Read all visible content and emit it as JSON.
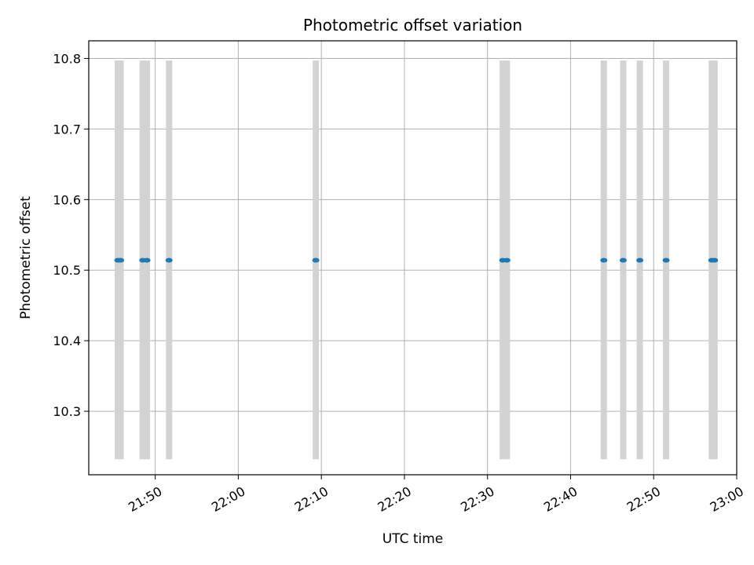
{
  "chart_data": {
    "type": "scatter",
    "title": "Photometric offset variation",
    "xlabel": "UTC time",
    "ylabel": "Photometric offset",
    "x_axis_type": "time",
    "xlim": [
      "21:42",
      "23:00"
    ],
    "ylim": [
      10.21,
      10.825
    ],
    "x_ticks": [
      "21:50",
      "22:00",
      "22:10",
      "22:20",
      "22:30",
      "22:40",
      "22:50",
      "23:00"
    ],
    "y_ticks": [
      10.3,
      10.4,
      10.5,
      10.6,
      10.7,
      10.8
    ],
    "grid": true,
    "colors": {
      "points": "#1f77b4",
      "error_bars": "#d3d3d3",
      "grid": "#b0b0b0"
    },
    "error_bar": {
      "low": 10.232,
      "high": 10.797
    },
    "series": [
      {
        "x": [
          "21:45:30",
          "21:45:50",
          "21:48:30",
          "21:49:00",
          "21:51:40",
          "22:09:20",
          "22:31:50",
          "22:32:20",
          "22:44:00",
          "22:46:20",
          "22:48:20",
          "22:51:30",
          "22:57:00",
          "22:57:20"
        ],
        "y": [
          10.514,
          10.514,
          10.514,
          10.514,
          10.514,
          10.514,
          10.514,
          10.514,
          10.514,
          10.514,
          10.514,
          10.514,
          10.514,
          10.514
        ]
      }
    ]
  }
}
